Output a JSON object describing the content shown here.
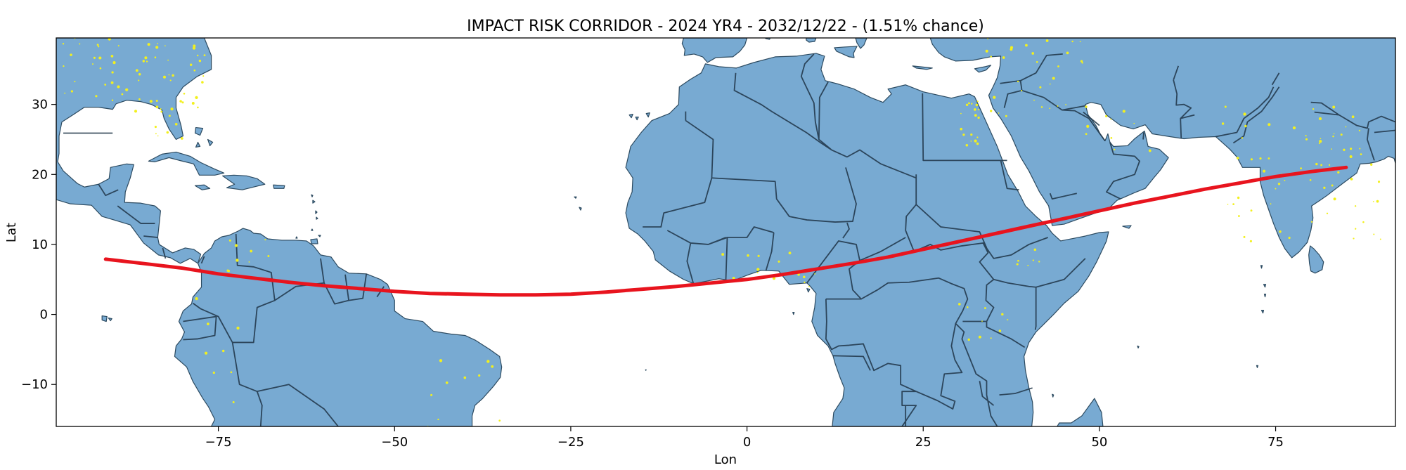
{
  "chart_data": {
    "type": "line",
    "title": "IMPACT RISK CORRIDOR - 2024 YR4 - 2032/12/22 - (1.51% chance)",
    "xlabel": "Lon",
    "ylabel": "Lat",
    "xlim": [
      -98,
      92
    ],
    "ylim": [
      -16,
      39.5
    ],
    "xticks": [
      -75,
      -50,
      -25,
      0,
      25,
      50,
      75
    ],
    "yticks": [
      -10,
      0,
      10,
      20,
      30
    ],
    "grid": false,
    "colors": {
      "land": "#78aad2",
      "corridor": "#e8141e",
      "city_lights": "#f2f01e",
      "borders": "#1e3446"
    },
    "series": [
      {
        "x": [
          -91,
          -85,
          -80,
          -75,
          -70,
          -65,
          -60,
          -55,
          -50,
          -45,
          -40,
          -35,
          -30,
          -25,
          -20,
          -15,
          -10,
          -5,
          0,
          5,
          10,
          15,
          20,
          25,
          30,
          35,
          40,
          45,
          50,
          55,
          60,
          65,
          70,
          75,
          80,
          85
        ],
        "y": [
          7.9,
          7.2,
          6.6,
          5.8,
          5.2,
          4.6,
          4.1,
          3.7,
          3.3,
          3.0,
          2.9,
          2.8,
          2.8,
          2.9,
          3.2,
          3.6,
          4.0,
          4.5,
          5.0,
          5.7,
          6.5,
          7.3,
          8.2,
          9.3,
          10.4,
          11.5,
          12.6,
          13.7,
          14.8,
          15.9,
          16.9,
          17.9,
          18.8,
          19.7,
          20.4,
          21.0
        ]
      }
    ]
  }
}
